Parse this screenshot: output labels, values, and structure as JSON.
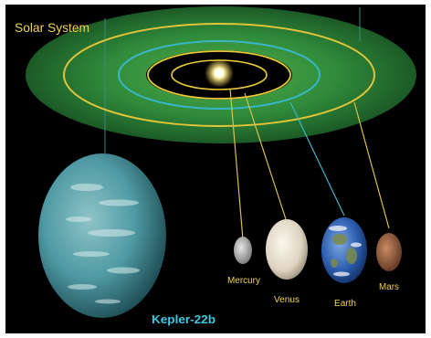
{
  "diagram": {
    "title": "Solar System",
    "exoplanet": {
      "name": "Kepler-22b"
    },
    "planets": [
      {
        "name": "Mercury"
      },
      {
        "name": "Venus"
      },
      {
        "name": "Earth"
      },
      {
        "name": "Mars"
      }
    ]
  },
  "colors": {
    "background": "#000000",
    "frame": "#ffffff",
    "disk": "#2f8a3a",
    "orbit_inner": "#e8c93a",
    "orbit_earth": "#38b6c8",
    "orbit_outer": "#e0c43a",
    "sun": "#ffe680",
    "title": "#f0d24a",
    "exoplanet_label": "#3cc8e0",
    "planet_label": "#f0d24a",
    "kepler_planet": "#4f9aa3",
    "mercury": "#bdbdbd",
    "venus": "#e4dccb",
    "earth": "#3c6fc0",
    "mars": "#a06a48"
  }
}
